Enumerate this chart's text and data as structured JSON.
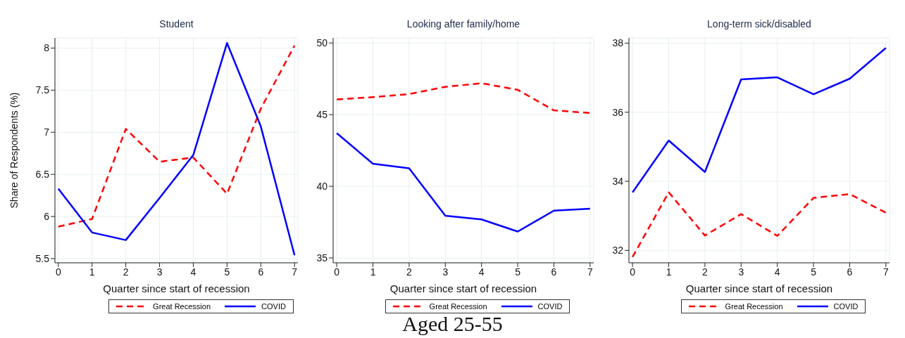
{
  "chart_data": [
    {
      "type": "line",
      "title": "Student",
      "xlabel": "Quarter since start of recession",
      "ylabel": "Share of Respondents (%)",
      "x": [
        0,
        1,
        2,
        3,
        4,
        5,
        6,
        7
      ],
      "xlim": [
        -0.1,
        7.1
      ],
      "xticks": [
        0,
        1,
        2,
        3,
        4,
        5,
        6,
        7
      ],
      "ylim": [
        5.45,
        8.12
      ],
      "yticks": [
        5.5,
        6,
        6.5,
        7,
        7.5,
        8
      ],
      "grid": true,
      "legend": "bottom",
      "series": [
        {
          "name": "Great Recession",
          "color": "#ff0000",
          "line_style": "dashed",
          "values": [
            5.88,
            5.97,
            7.04,
            6.65,
            6.7,
            6.27,
            7.28,
            8.03
          ]
        },
        {
          "name": "COVID",
          "color": "#0000ff",
          "line_style": "solid",
          "values": [
            6.33,
            5.81,
            5.72,
            6.22,
            6.73,
            8.06,
            7.07,
            5.54
          ]
        }
      ]
    },
    {
      "type": "line",
      "title": "Looking after family/home",
      "xlabel": "Quarter since start of recession",
      "x": [
        0,
        1,
        2,
        3,
        4,
        5,
        6,
        7
      ],
      "xlim": [
        -0.1,
        7.1
      ],
      "xticks": [
        0,
        1,
        2,
        3,
        4,
        5,
        6,
        7
      ],
      "ylim": [
        34.66,
        50.35
      ],
      "yticks": [
        35,
        40,
        45,
        50
      ],
      "grid": true,
      "legend": "bottom",
      "annotations": [
        "Aged 25-55"
      ],
      "series": [
        {
          "name": "Great Recession",
          "color": "#ff0000",
          "line_style": "dashed",
          "values": [
            46.06,
            46.22,
            46.43,
            46.94,
            47.19,
            46.73,
            45.3,
            45.11
          ]
        },
        {
          "name": "COVID",
          "color": "#0000ff",
          "line_style": "solid",
          "values": [
            43.71,
            41.57,
            41.25,
            37.95,
            37.69,
            36.84,
            38.3,
            38.43
          ]
        }
      ]
    },
    {
      "type": "line",
      "title": "Long-term sick/disabled",
      "xlabel": "Quarter since start of recession",
      "x": [
        0,
        1,
        2,
        3,
        4,
        5,
        6,
        7
      ],
      "xlim": [
        -0.1,
        7.1
      ],
      "xticks": [
        0,
        1,
        2,
        3,
        4,
        5,
        6,
        7
      ],
      "ylim": [
        31.64,
        38.15
      ],
      "yticks": [
        32,
        34,
        36,
        38
      ],
      "grid": true,
      "legend": "bottom",
      "series": [
        {
          "name": "Great Recession",
          "color": "#ff0000",
          "line_style": "dashed",
          "values": [
            31.81,
            33.68,
            32.43,
            33.05,
            32.42,
            33.52,
            33.63,
            33.09
          ]
        },
        {
          "name": "COVID",
          "color": "#0000ff",
          "line_style": "solid",
          "values": [
            33.68,
            35.18,
            34.27,
            36.95,
            37.01,
            36.52,
            36.97,
            37.86
          ]
        }
      ]
    }
  ]
}
